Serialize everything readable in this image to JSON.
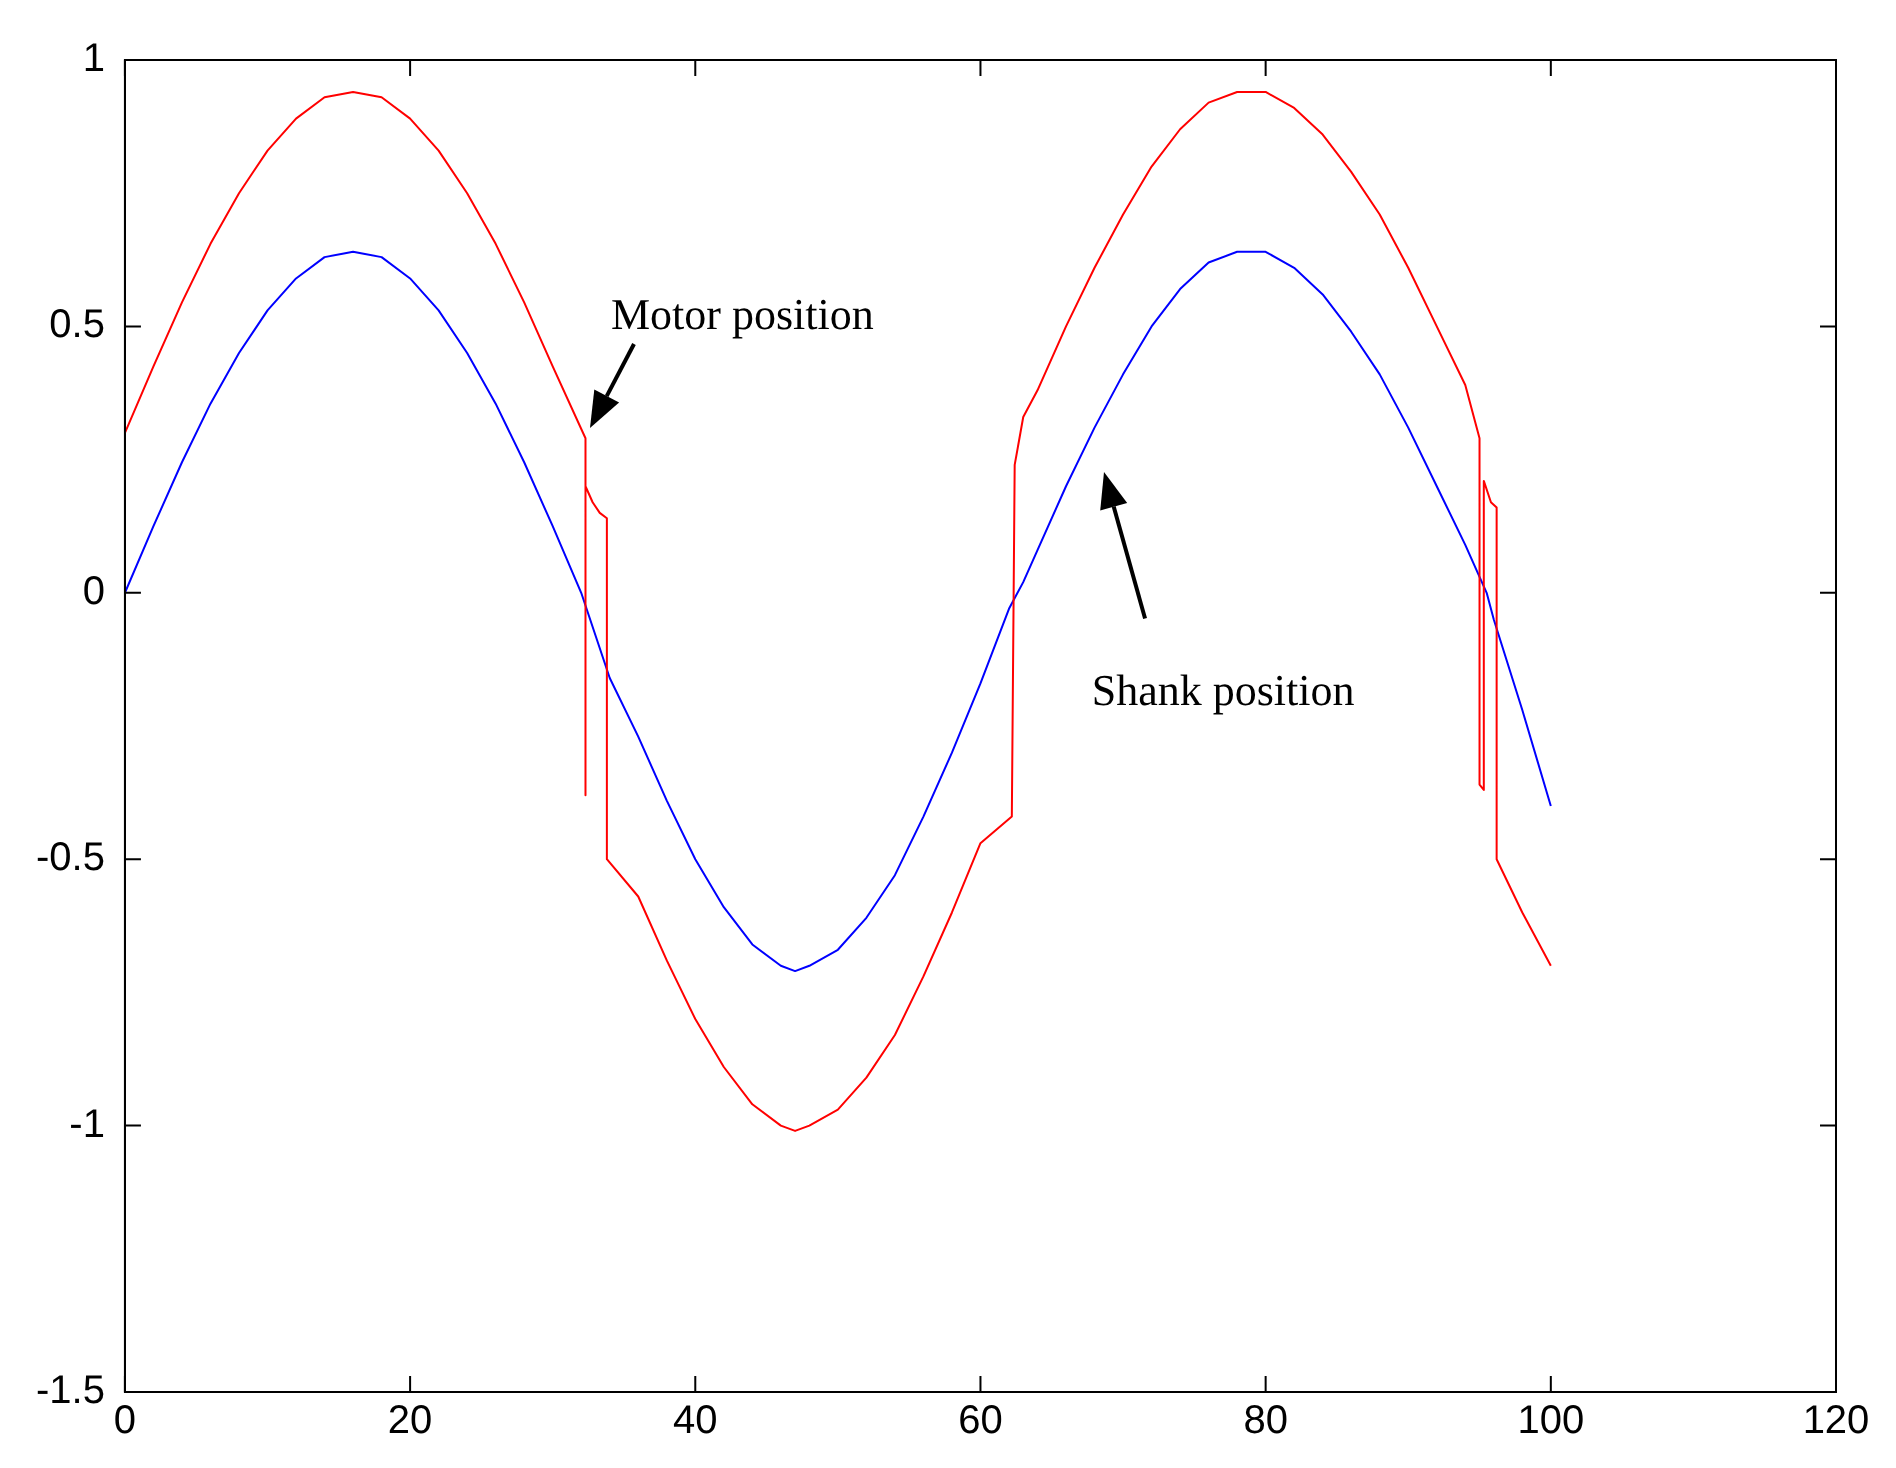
{
  "chart_data": {
    "type": "line",
    "xlim": [
      0,
      120
    ],
    "ylim": [
      -1.5,
      1
    ],
    "xticks": [
      0,
      20,
      40,
      60,
      80,
      100,
      120
    ],
    "yticks": [
      -1.5,
      -1,
      -0.5,
      0,
      0.5,
      1
    ],
    "grid": false,
    "legend": false,
    "marker": "none",
    "line_style": "solid",
    "annotations": [
      {
        "text": "Motor position",
        "x": 32.4,
        "y": 0.3
      },
      "Shank position"
    ],
    "series": [
      {
        "color": "#ff0000",
        "x": [
          0,
          2,
          4,
          6,
          8,
          10,
          12,
          14,
          16,
          18,
          20,
          22,
          24,
          26,
          28,
          30,
          32.3,
          32.3,
          32.3,
          32.8,
          33.3,
          33.8,
          33.8,
          36,
          38,
          40,
          42,
          44,
          46,
          47,
          48,
          50,
          52,
          54,
          56,
          58,
          60,
          62.2,
          62.4,
          62.8,
          63,
          64,
          66,
          68,
          70,
          72,
          74,
          76,
          78,
          79,
          80,
          82,
          84,
          86,
          88,
          90,
          92,
          94,
          95,
          95,
          95.3,
          95.3,
          95.8,
          96.2,
          96.2,
          98,
          100
        ],
        "values": [
          0.3,
          0.425,
          0.545,
          0.655,
          0.75,
          0.83,
          0.89,
          0.93,
          0.94,
          0.93,
          0.89,
          0.83,
          0.75,
          0.655,
          0.545,
          0.425,
          0.29,
          -0.38,
          0.2,
          0.17,
          0.15,
          0.14,
          -0.5,
          -0.57,
          -0.69,
          -0.8,
          -0.89,
          -0.96,
          -1,
          -1.01,
          -1,
          -0.97,
          -0.91,
          -0.83,
          -0.72,
          -0.6,
          -0.47,
          -0.42,
          0.24,
          0.3,
          0.33,
          0.38,
          0.5,
          0.61,
          0.71,
          0.8,
          0.87,
          0.92,
          0.94,
          0.94,
          0.94,
          0.91,
          0.86,
          0.79,
          0.71,
          0.61,
          0.5,
          0.39,
          0.29,
          -0.36,
          -0.37,
          0.21,
          0.17,
          0.16,
          -0.5,
          -0.6,
          -0.7
        ]
      },
      {
        "color": "#0000ff",
        "x": [
          0,
          2,
          4,
          6,
          8,
          10,
          12,
          14,
          16,
          18,
          20,
          22,
          24,
          26,
          28,
          30,
          32,
          34,
          36,
          38,
          40,
          42,
          44,
          46,
          47,
          48,
          50,
          52,
          54,
          56,
          58,
          60,
          62,
          63,
          64,
          66,
          68,
          70,
          72,
          74,
          76,
          78,
          79,
          80,
          82,
          84,
          86,
          88,
          90,
          92,
          94,
          95.5,
          96,
          98,
          100
        ],
        "values": [
          0,
          0.125,
          0.245,
          0.355,
          0.45,
          0.53,
          0.59,
          0.63,
          0.64,
          0.63,
          0.59,
          0.53,
          0.45,
          0.355,
          0.245,
          0.125,
          0,
          -0.16,
          -0.27,
          -0.39,
          -0.5,
          -0.59,
          -0.66,
          -0.7,
          -0.71,
          -0.7,
          -0.67,
          -0.61,
          -0.53,
          -0.42,
          -0.3,
          -0.17,
          -0.03,
          0.02,
          0.08,
          0.2,
          0.31,
          0.41,
          0.5,
          0.57,
          0.62,
          0.64,
          0.64,
          0.64,
          0.61,
          0.56,
          0.49,
          0.41,
          0.31,
          0.2,
          0.09,
          0,
          -0.05,
          -0.22,
          -0.4
        ]
      }
    ]
  }
}
